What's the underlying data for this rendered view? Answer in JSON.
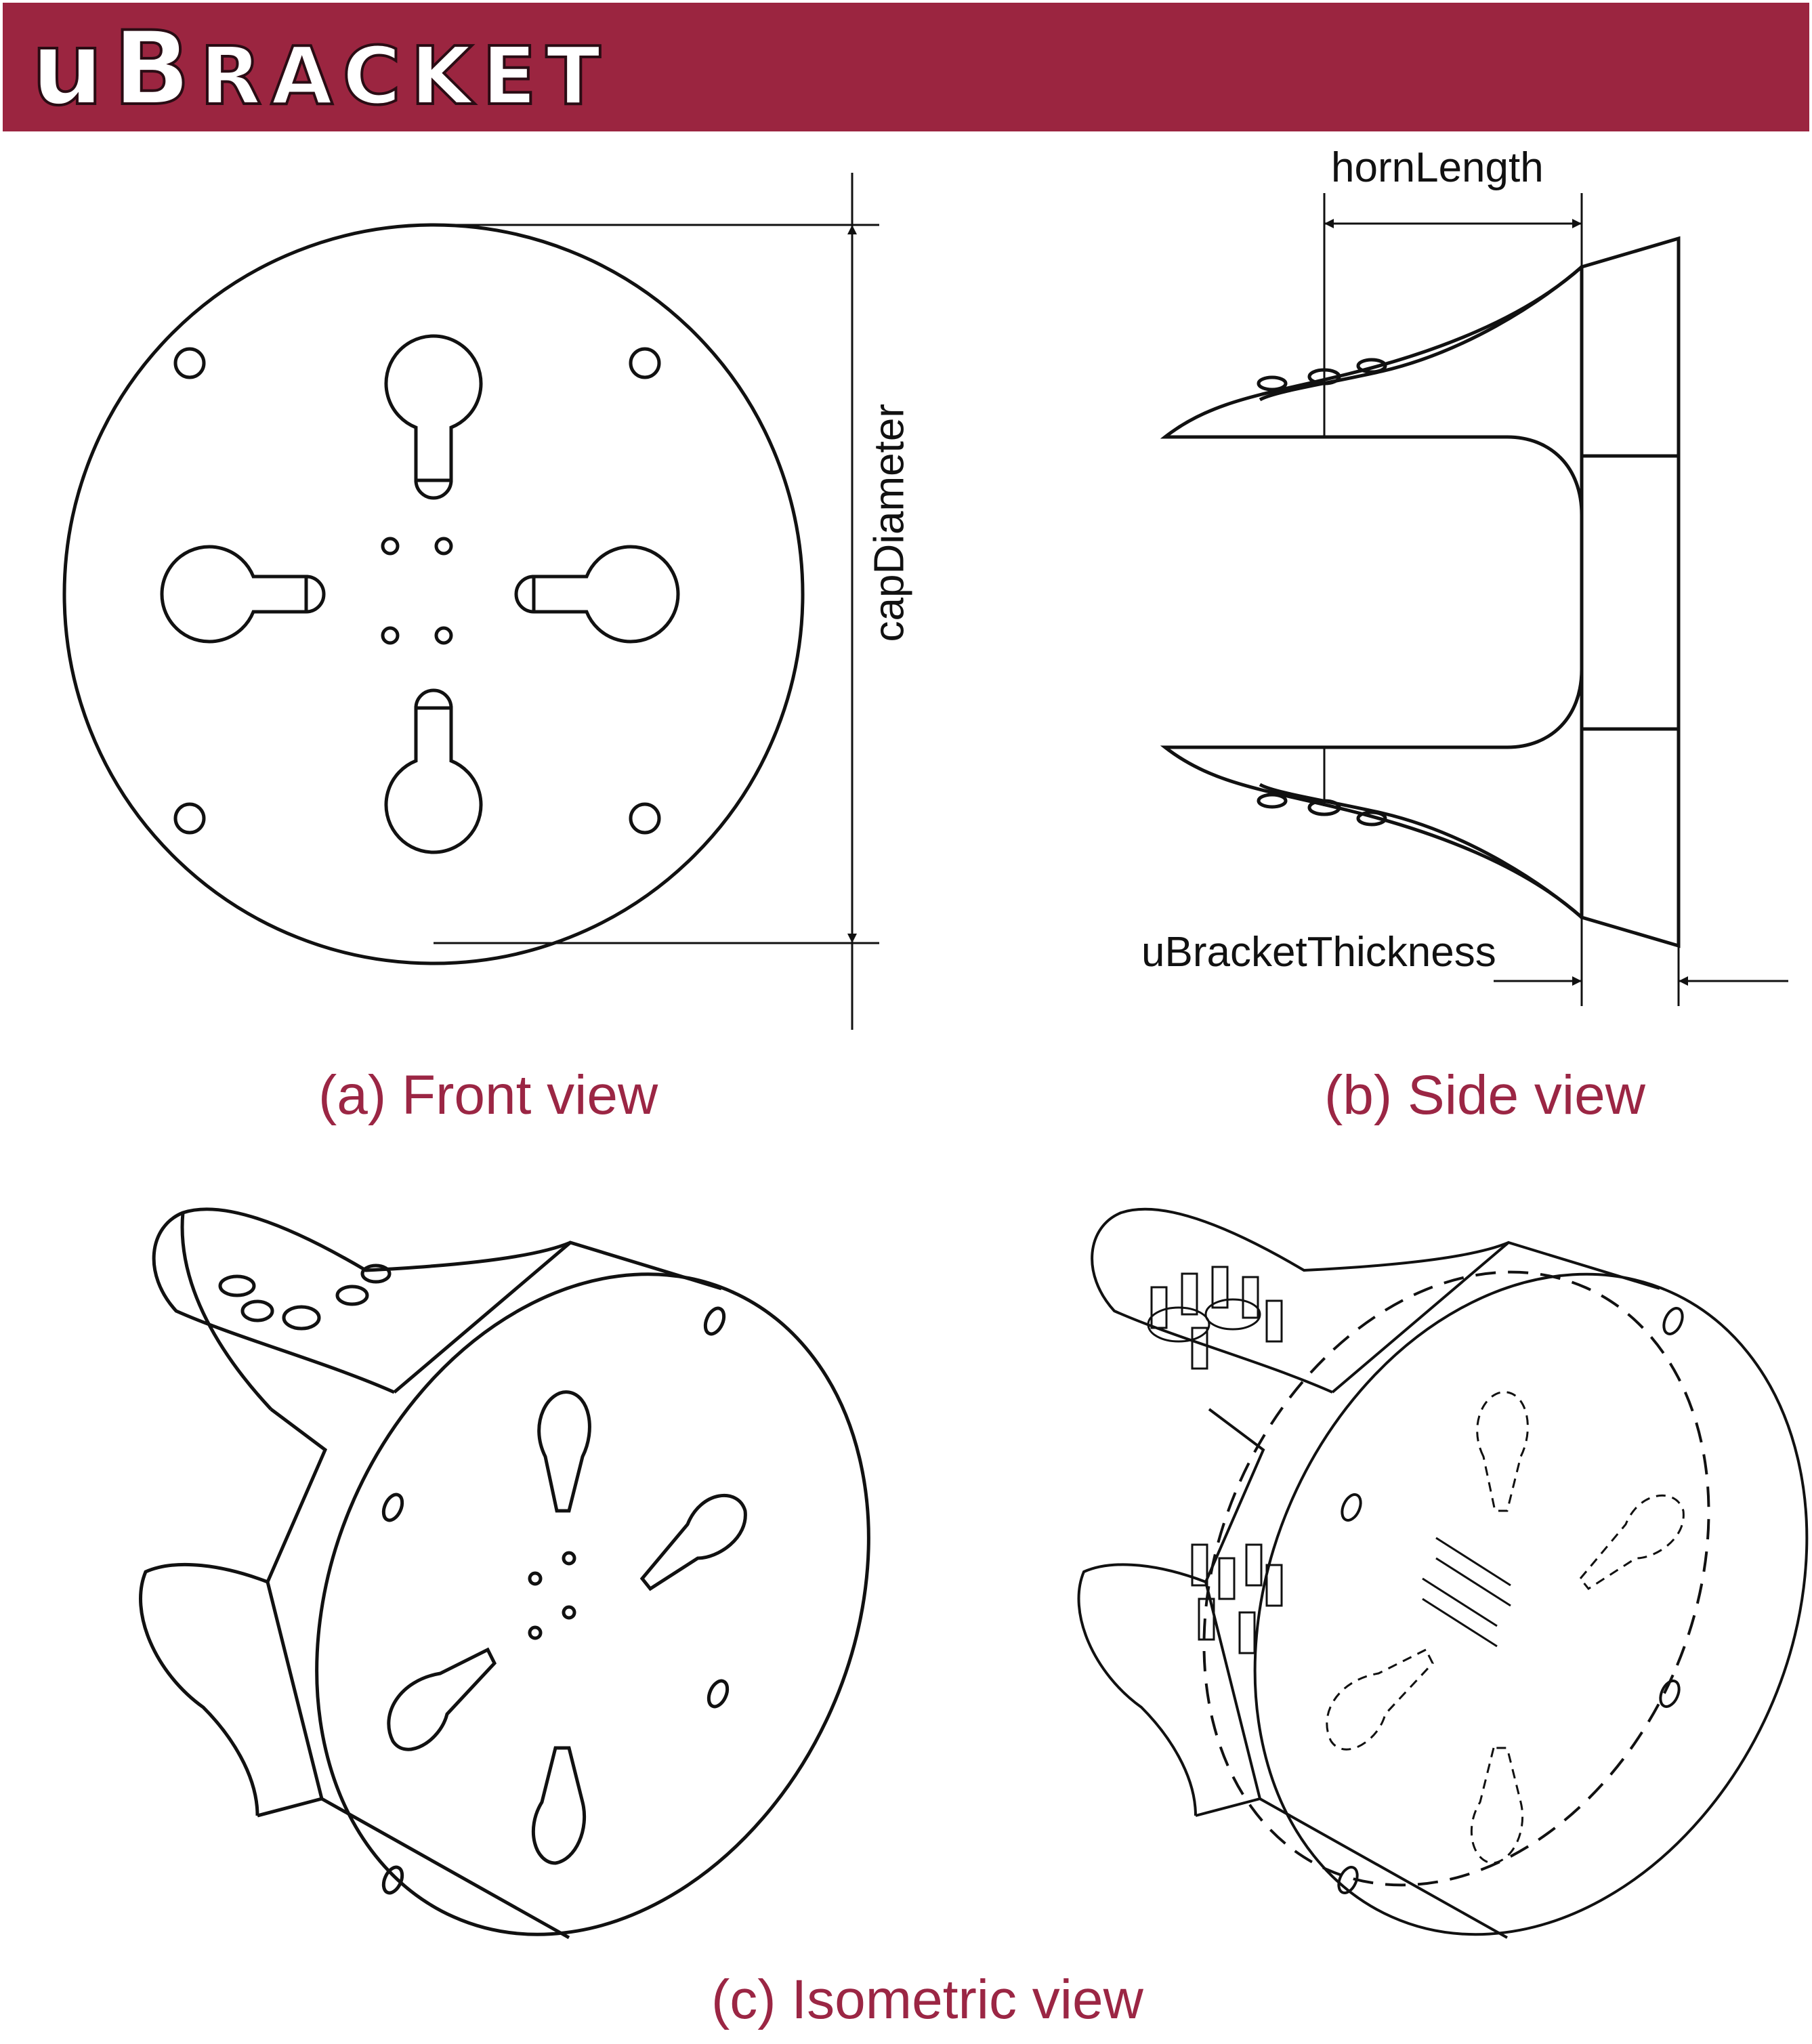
{
  "banner": {
    "title_first": "u",
    "title_capital": "B",
    "title_rest": "RACKET",
    "color": "#9b2540"
  },
  "dimensions": {
    "cap_diameter": "capDiameter",
    "horn_length": "hornLength",
    "thickness": "uBracketThickness"
  },
  "captions": {
    "front": "(a) Front view",
    "side": "(b) Side view",
    "isometric": "(c) Isometric view"
  },
  "colors": {
    "caption": "#9b2644",
    "line": "#111111"
  }
}
